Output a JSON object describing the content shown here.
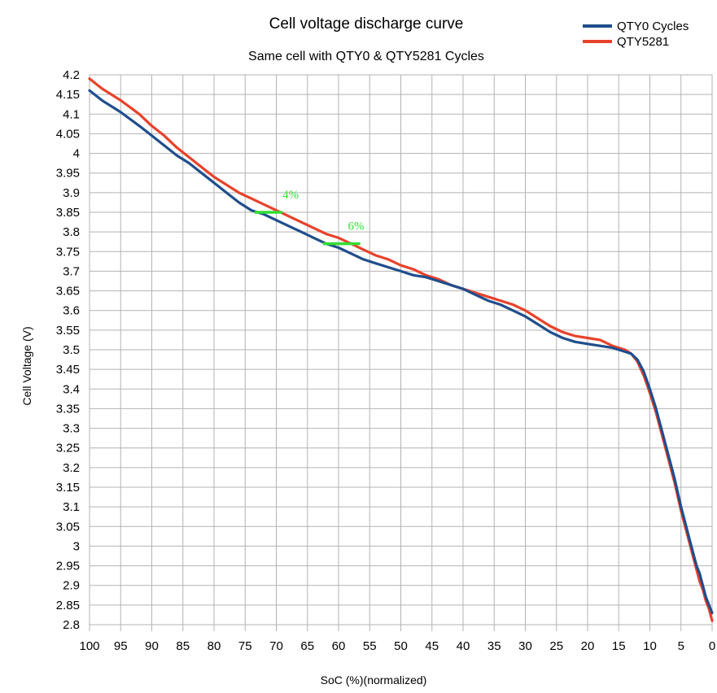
{
  "chart_data": {
    "type": "line",
    "title": "Cell voltage discharge curve",
    "subtitle": "Same cell with QTY0 & QTY5281 Cycles",
    "xlabel": "SoC (%)(normalized)",
    "ylabel": "Cell Voltage (V)",
    "xlim": [
      100,
      0
    ],
    "ylim": [
      2.8,
      4.2
    ],
    "x_ticks": [
      "100",
      "95",
      "90",
      "85",
      "80",
      "75",
      "70",
      "65",
      "60",
      "55",
      "50",
      "45",
      "40",
      "35",
      "30",
      "25",
      "20",
      "15",
      "10",
      "5",
      "0"
    ],
    "y_ticks": [
      "4.2",
      "4.15",
      "4.1",
      "4.05",
      "4",
      "3.95",
      "3.9",
      "3.85",
      "3.8",
      "3.75",
      "3.7",
      "3.65",
      "3.6",
      "3.55",
      "3.5",
      "3.45",
      "3.4",
      "3.35",
      "3.3",
      "3.25",
      "3.2",
      "3.15",
      "3.1",
      "3.05",
      "3",
      "2.95",
      "2.9",
      "2.85",
      "2.8"
    ],
    "grid": true,
    "legend_position": "top-right",
    "series": [
      {
        "name": "QTY0 Cycles",
        "color": "#1f4e8c",
        "x": [
          100,
          98,
          95,
          92,
          90,
          88,
          86,
          84,
          82,
          80,
          78,
          76,
          74,
          72,
          70,
          68,
          66,
          64,
          62,
          60,
          58,
          56,
          54,
          52,
          50,
          48,
          46,
          44,
          42,
          40,
          38,
          36,
          34,
          32,
          30,
          28,
          26,
          24,
          22,
          20,
          18,
          16,
          15,
          14,
          13,
          12,
          11,
          10,
          9,
          8,
          7,
          6,
          5,
          4,
          3,
          2.5,
          2,
          1.5,
          1,
          0.5,
          0
        ],
        "y": [
          4.16,
          4.135,
          4.105,
          4.07,
          4.045,
          4.02,
          3.995,
          3.975,
          3.95,
          3.925,
          3.9,
          3.875,
          3.855,
          3.845,
          3.83,
          3.815,
          3.8,
          3.785,
          3.77,
          3.76,
          3.745,
          3.73,
          3.72,
          3.71,
          3.7,
          3.69,
          3.685,
          3.675,
          3.665,
          3.655,
          3.64,
          3.625,
          3.615,
          3.6,
          3.585,
          3.565,
          3.545,
          3.53,
          3.52,
          3.515,
          3.51,
          3.505,
          3.5,
          3.495,
          3.49,
          3.475,
          3.445,
          3.4,
          3.35,
          3.29,
          3.23,
          3.17,
          3.1,
          3.04,
          2.98,
          2.95,
          2.93,
          2.9,
          2.87,
          2.85,
          2.83
        ]
      },
      {
        "name": "QTY5281",
        "color": "#e8422b",
        "x": [
          100,
          98,
          95,
          92,
          90,
          88,
          86,
          84,
          82,
          80,
          78,
          76,
          74,
          72,
          70,
          68,
          66,
          64,
          62,
          60,
          58,
          56,
          54,
          52,
          50,
          48,
          46,
          44,
          42,
          40,
          38,
          36,
          34,
          32,
          30,
          28,
          26,
          24,
          22,
          20,
          18,
          16,
          15,
          14,
          13,
          12,
          11,
          10,
          9,
          8,
          7,
          6,
          5,
          4,
          3,
          2.5,
          2,
          1.5,
          1,
          0.5,
          0
        ],
        "y": [
          4.19,
          4.165,
          4.135,
          4.1,
          4.07,
          4.045,
          4.015,
          3.99,
          3.965,
          3.94,
          3.92,
          3.9,
          3.885,
          3.87,
          3.855,
          3.84,
          3.825,
          3.81,
          3.795,
          3.785,
          3.77,
          3.755,
          3.74,
          3.73,
          3.715,
          3.705,
          3.69,
          3.68,
          3.665,
          3.655,
          3.645,
          3.635,
          3.625,
          3.615,
          3.6,
          3.58,
          3.56,
          3.545,
          3.535,
          3.53,
          3.525,
          3.51,
          3.505,
          3.5,
          3.49,
          3.47,
          3.435,
          3.39,
          3.34,
          3.28,
          3.22,
          3.16,
          3.09,
          3.03,
          2.97,
          2.94,
          2.91,
          2.89,
          2.86,
          2.84,
          2.81
        ]
      }
    ],
    "annotations": [
      {
        "text": "4%",
        "color": "#33dd33",
        "x_from": 73.5,
        "x_to": 69,
        "y": 3.85,
        "label_x": 69,
        "label_y": 3.885
      },
      {
        "text": "6%",
        "color": "#33dd33",
        "x_from": 62.5,
        "x_to": 56.5,
        "y": 3.77,
        "label_x": 58.5,
        "label_y": 3.805
      }
    ]
  }
}
